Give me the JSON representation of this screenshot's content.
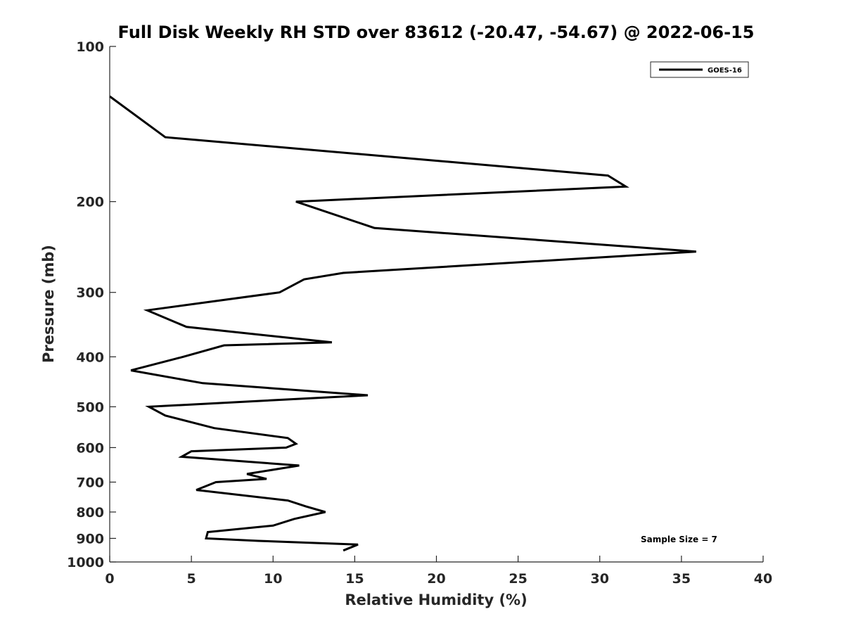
{
  "chart_data": {
    "type": "line",
    "title": "Full Disk Weekly RH STD over 83612 (-20.47, -54.67) @ 2022-06-15",
    "xlabel": "Relative Humidity (%)",
    "ylabel": "Pressure (mb)",
    "xlim": [
      0,
      40
    ],
    "ylim": [
      100,
      1000
    ],
    "yscale": "log",
    "y_reversed": true,
    "xticks": [
      0,
      5,
      10,
      15,
      20,
      25,
      30,
      35,
      40
    ],
    "xtick_labels": [
      "0",
      "5",
      "10",
      "15",
      "20",
      "25",
      "30",
      "35",
      "40"
    ],
    "yticks": [
      100,
      200,
      300,
      400,
      500,
      600,
      700,
      800,
      900,
      1000
    ],
    "ytick_labels": [
      "100",
      "200",
      "300",
      "400",
      "500",
      "600",
      "700",
      "800",
      "900",
      "1000"
    ],
    "grid": false,
    "legend_position": "top-right",
    "annotation": "Sample Size = 7",
    "series": [
      {
        "name": "GOES-16",
        "color": "#000000",
        "x": [
          0,
          3.4,
          30.5,
          31.6,
          11.4,
          16.2,
          35.9,
          14.3,
          11.9,
          10.4,
          2.3,
          4.7,
          13.6,
          7.0,
          4.5,
          1.3,
          5.7,
          15.8,
          2.4,
          3.4,
          6.4,
          10.9,
          11.4,
          10.8,
          5.0,
          4.4,
          11.6,
          8.4,
          9.6,
          6.5,
          5.3,
          10.9,
          12.0,
          13.2,
          11.3,
          10.0,
          6.0,
          5.9,
          9.1,
          15.2,
          14.3
        ],
        "y": [
          125,
          150,
          178,
          187,
          200,
          225,
          250,
          275,
          283,
          300,
          325,
          350,
          375,
          380,
          400,
          425,
          450,
          475,
          500,
          520,
          550,
          575,
          590,
          600,
          610,
          625,
          650,
          675,
          690,
          700,
          725,
          760,
          780,
          800,
          825,
          850,
          875,
          900,
          910,
          925,
          950
        ]
      }
    ]
  }
}
